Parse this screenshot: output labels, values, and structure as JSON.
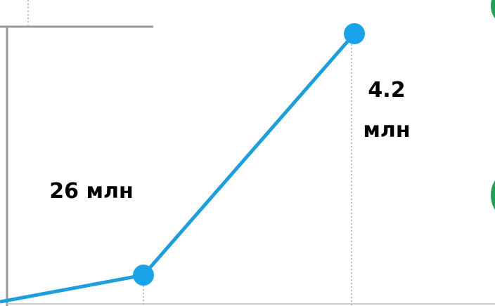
{
  "labels": [
    "26 млн",
    "4.2 млн"
  ]
}
